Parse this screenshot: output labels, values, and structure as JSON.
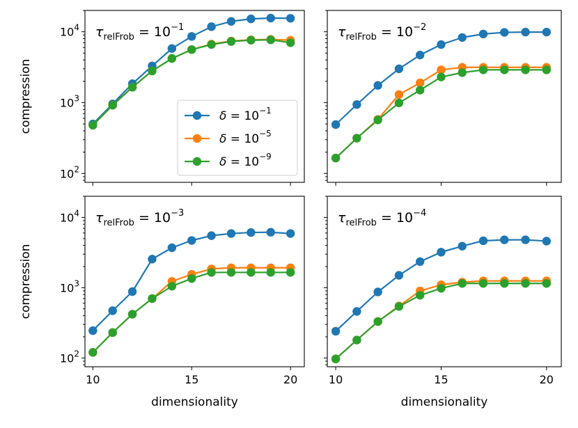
{
  "chart_data": [
    {
      "type": "line",
      "title_prefix": "τ",
      "title_sub": "relFrob",
      "title_mid": " = 10",
      "title_exp": "−1",
      "x": [
        10,
        11,
        12,
        13,
        14,
        15,
        16,
        17,
        18,
        19,
        20
      ],
      "series": [
        {
          "name": "δ = 10^−1",
          "color": "#1f77b4",
          "values": [
            500,
            960,
            1850,
            3300,
            5800,
            8600,
            11800,
            14000,
            15200,
            15600,
            15500
          ]
        },
        {
          "name": "δ = 10^−5",
          "color": "#ff7f0e",
          "values": [
            480,
            920,
            1650,
            2800,
            4200,
            5600,
            6700,
            7400,
            7700,
            7800,
            7600
          ]
        },
        {
          "name": "δ = 10^−9",
          "color": "#2ca02c",
          "values": [
            480,
            920,
            1650,
            2800,
            4200,
            5600,
            6600,
            7300,
            7600,
            7700,
            7000
          ]
        }
      ],
      "xlabel": "",
      "ylabel": "compression",
      "yscale": "log",
      "ylim": [
        75,
        20000
      ],
      "show_x_ticklabels": false,
      "show_y_ticklabels": true
    },
    {
      "type": "line",
      "title_prefix": "τ",
      "title_sub": "relFrob",
      "title_mid": " = 10",
      "title_exp": "−2",
      "x": [
        10,
        11,
        12,
        13,
        14,
        15,
        16,
        17,
        18,
        19,
        20
      ],
      "series": [
        {
          "name": "δ = 10^−1",
          "color": "#1f77b4",
          "values": [
            490,
            940,
            1750,
            3000,
            4700,
            6600,
            8300,
            9300,
            9800,
            9900,
            9900
          ]
        },
        {
          "name": "δ = 10^−5",
          "color": "#ff7f0e",
          "values": [
            165,
            315,
            580,
            1300,
            1900,
            2900,
            3150,
            3150,
            3150,
            3150,
            3150
          ]
        },
        {
          "name": "δ = 10^−9",
          "color": "#2ca02c",
          "values": [
            165,
            315,
            570,
            990,
            1500,
            2300,
            2650,
            2900,
            2900,
            2900,
            2900
          ]
        }
      ],
      "xlabel": "",
      "ylabel": "",
      "yscale": "log",
      "ylim": [
        75,
        20000
      ],
      "show_x_ticklabels": false,
      "show_y_ticklabels": false
    },
    {
      "type": "line",
      "title_prefix": "τ",
      "title_sub": "relFrob",
      "title_mid": " = 10",
      "title_exp": "−3",
      "x": [
        10,
        11,
        12,
        13,
        14,
        15,
        16,
        17,
        18,
        19,
        20
      ],
      "series": [
        {
          "name": "δ = 10^−1",
          "color": "#1f77b4",
          "values": [
            245,
            470,
            880,
            2550,
            3700,
            4700,
            5500,
            5900,
            6100,
            6150,
            5900
          ]
        },
        {
          "name": "δ = 10^−5",
          "color": "#ff7f0e",
          "values": [
            120,
            230,
            420,
            700,
            1230,
            1550,
            1850,
            1920,
            1920,
            1920,
            1920
          ]
        },
        {
          "name": "δ = 10^−9",
          "color": "#2ca02c",
          "values": [
            120,
            230,
            420,
            700,
            1050,
            1350,
            1650,
            1650,
            1650,
            1650,
            1650
          ]
        }
      ],
      "xlabel": "dimensionality",
      "ylabel": "compression",
      "yscale": "log",
      "ylim": [
        75,
        20000
      ],
      "show_x_ticklabels": true,
      "show_y_ticklabels": true
    },
    {
      "type": "line",
      "title_prefix": "τ",
      "title_sub": "relFrob",
      "title_mid": " = 10",
      "title_exp": "−4",
      "x": [
        10,
        11,
        12,
        13,
        14,
        15,
        16,
        17,
        18,
        19,
        20
      ],
      "series": [
        {
          "name": "δ = 10^−1",
          "color": "#1f77b4",
          "values": [
            240,
            460,
            870,
            1500,
            2350,
            3200,
            3900,
            4650,
            4800,
            4800,
            4600
          ]
        },
        {
          "name": "δ = 10^−5",
          "color": "#ff7f0e",
          "values": [
            97,
            180,
            330,
            550,
            900,
            1100,
            1200,
            1250,
            1250,
            1250,
            1250
          ]
        },
        {
          "name": "δ = 10^−9",
          "color": "#2ca02c",
          "values": [
            97,
            180,
            330,
            540,
            780,
            980,
            1150,
            1150,
            1150,
            1150,
            1150
          ]
        }
      ],
      "xlabel": "dimensionality",
      "ylabel": "",
      "yscale": "log",
      "ylim": [
        75,
        20000
      ],
      "show_x_ticklabels": true,
      "show_y_ticklabels": false
    }
  ],
  "axes": {
    "x_ticks": [
      10,
      15,
      20
    ],
    "y_ticks": [
      {
        "value": 100,
        "base": "10",
        "exp": "2"
      },
      {
        "value": 1000,
        "base": "10",
        "exp": "3"
      },
      {
        "value": 10000,
        "base": "10",
        "exp": "4"
      }
    ],
    "xlim": [
      9.6,
      20.7
    ]
  },
  "legend": {
    "panel": 0,
    "location": "lower-right",
    "entries": [
      {
        "symbol": "δ",
        "mid": " = 10",
        "exp": "−1",
        "color": "#1f77b4"
      },
      {
        "symbol": "δ",
        "mid": " = 10",
        "exp": "−5",
        "color": "#ff7f0e"
      },
      {
        "symbol": "δ",
        "mid": " = 10",
        "exp": "−9",
        "color": "#2ca02c"
      }
    ]
  }
}
